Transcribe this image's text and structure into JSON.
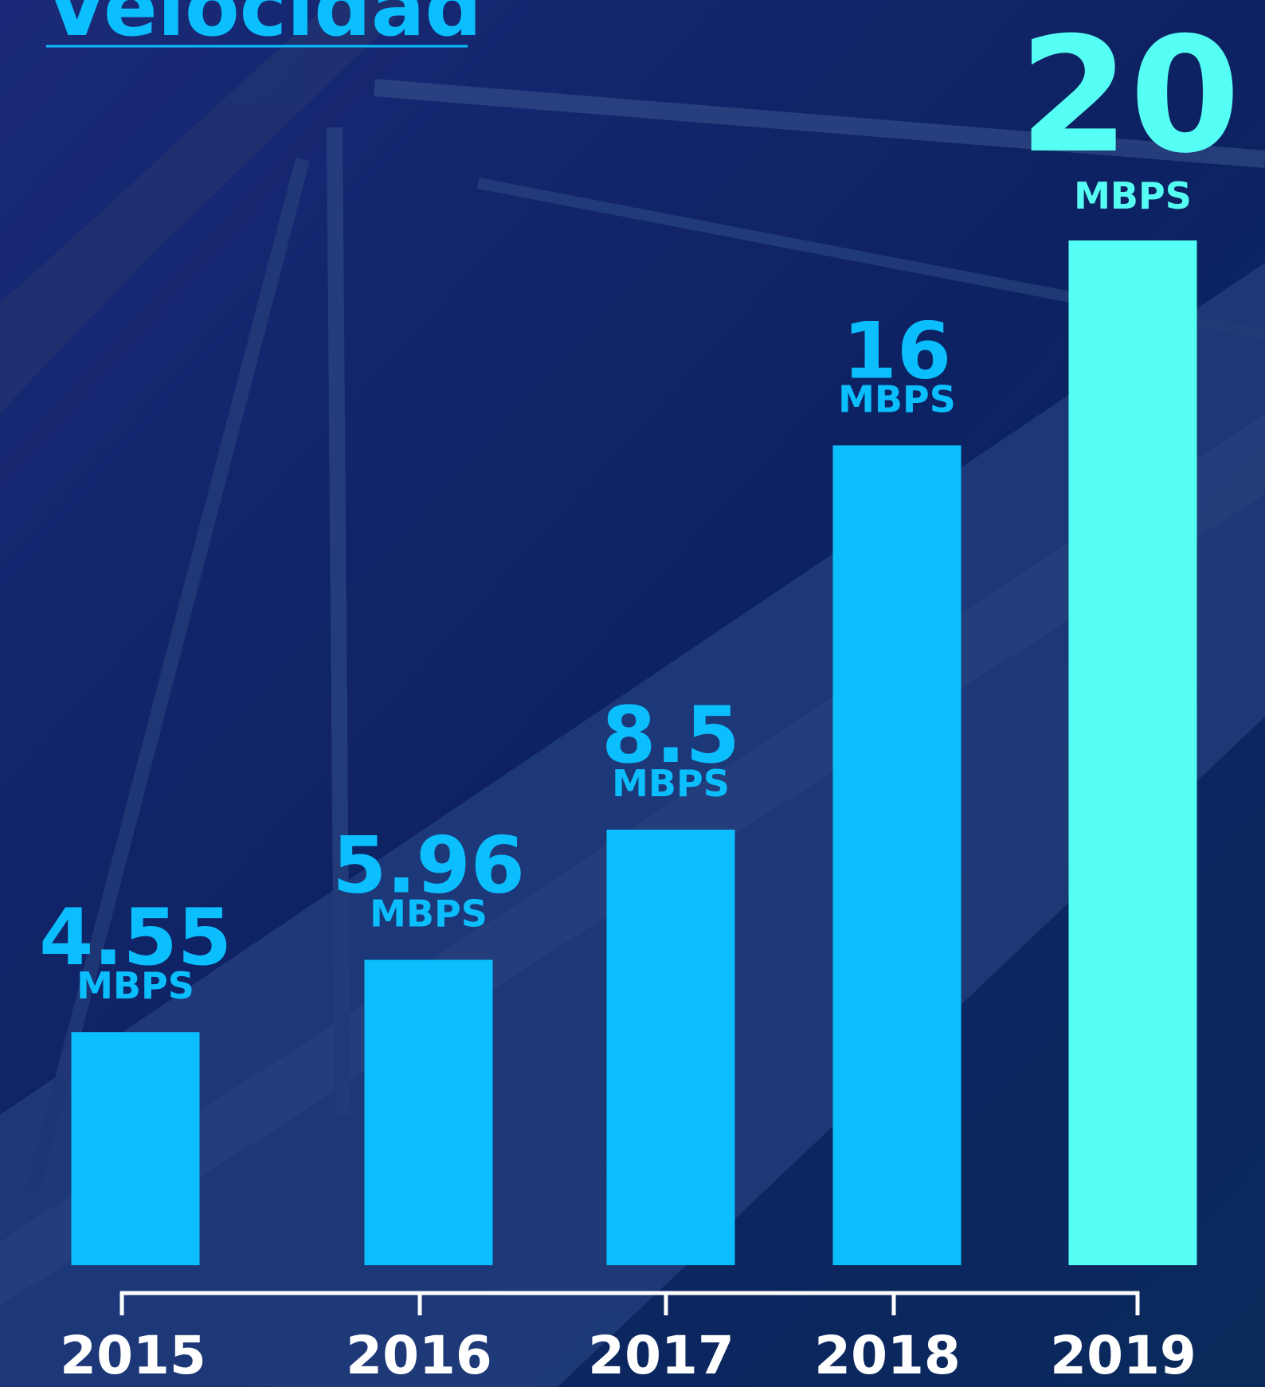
{
  "chart_data": {
    "type": "bar",
    "title": "Velocidad",
    "categories": [
      "2015",
      "2016",
      "2017",
      "2018",
      "2019"
    ],
    "values": [
      4.55,
      5.96,
      8.5,
      16,
      20
    ],
    "unit": "MBPS",
    "colors": [
      "#0bbfff",
      "#0bbfff",
      "#0bbfff",
      "#0bbfff",
      "#55fff4"
    ]
  }
}
